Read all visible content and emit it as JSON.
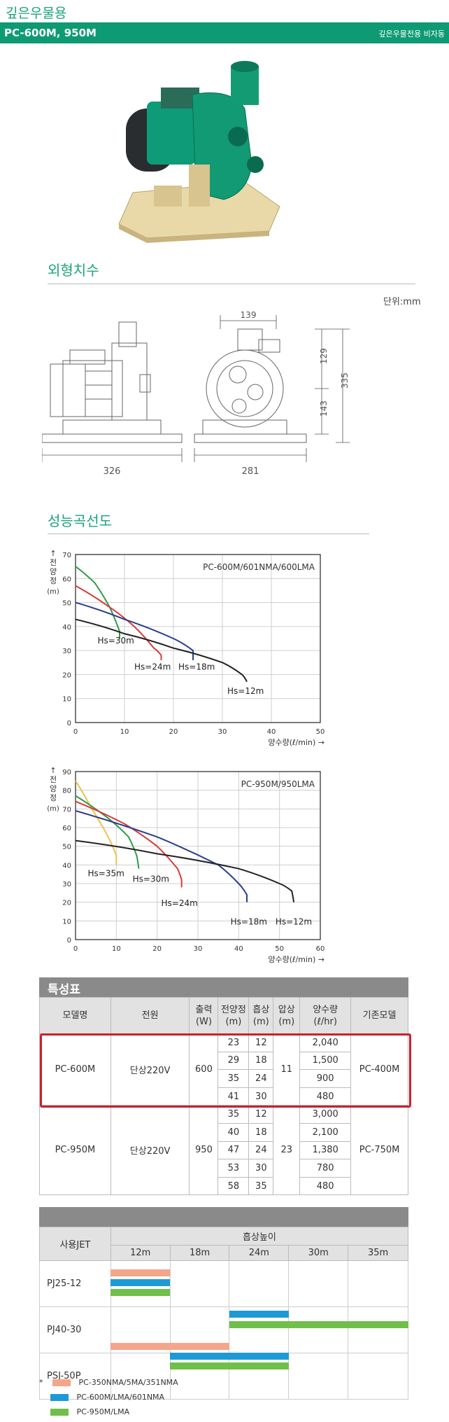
{
  "header": {
    "category": "깊은우물용",
    "model": "PC-600M, 950M",
    "subtitle": "깊은우물전용 비자동"
  },
  "dimension": {
    "title": "외형치수",
    "unit": "단위:mm",
    "labels": [
      "139",
      "129",
      "335",
      "143",
      "326",
      "281"
    ]
  },
  "performance": {
    "title": "성능곡선도"
  },
  "colors": {
    "brand_green": "#1aa37a",
    "highlight_red": "#c8222c",
    "peach": "#f4a58a",
    "blue": "#1d9ad6",
    "green": "#6fbf4a",
    "hs_green": "#2e9d48",
    "hs_red": "#d83a3a",
    "hs_navy": "#2c3f8c",
    "hs_black": "#222222",
    "hs_yellow": "#e8c44a"
  },
  "chart_data": [
    {
      "type": "line",
      "title": "PC-600M/601NMA/600LMA",
      "ylabel": "전양정(m)",
      "xlabel": "양수량(ℓ/min) →",
      "xlim": [
        0,
        50
      ],
      "ylim": [
        0,
        70
      ],
      "xticks": [
        0,
        10,
        20,
        30,
        40,
        50
      ],
      "yticks": [
        0,
        10,
        20,
        30,
        40,
        50,
        60,
        70
      ],
      "grid": true,
      "series": [
        {
          "name": "Hs=30m",
          "color": "#2e9d48",
          "x": [
            0,
            4,
            7,
            9,
            9
          ],
          "y": [
            65,
            58,
            48,
            38,
            35
          ]
        },
        {
          "name": "Hs=24m",
          "color": "#d83a3a",
          "x": [
            0,
            7,
            12,
            16,
            17.5,
            17.5
          ],
          "y": [
            57,
            48,
            40,
            31,
            28,
            26
          ]
        },
        {
          "name": "Hs=18m",
          "color": "#2c3f8c",
          "x": [
            0,
            10,
            20,
            24,
            24
          ],
          "y": [
            50,
            43,
            35,
            30,
            26
          ]
        },
        {
          "name": "Hs=12m",
          "color": "#222222",
          "x": [
            0,
            10,
            20,
            30,
            34,
            35
          ],
          "y": [
            43,
            37,
            31,
            25,
            20,
            17
          ]
        }
      ],
      "annotations": [
        {
          "text": "Hs=30m",
          "x": 4.5,
          "y": 33
        },
        {
          "text": "Hs=24m",
          "x": 12,
          "y": 22
        },
        {
          "text": "Hs=18m",
          "x": 21,
          "y": 22
        },
        {
          "text": "Hs=12m",
          "x": 31,
          "y": 12
        }
      ]
    },
    {
      "type": "line",
      "title": "PC-950M/950LMA",
      "ylabel": "전양정(m)",
      "xlabel": "양수량(ℓ/min) →",
      "xlim": [
        0,
        60
      ],
      "ylim": [
        0,
        90
      ],
      "xticks": [
        0,
        10,
        20,
        30,
        40,
        50,
        60
      ],
      "yticks": [
        0,
        10,
        20,
        30,
        40,
        50,
        60,
        70,
        80,
        90
      ],
      "grid": true,
      "series": [
        {
          "name": "Hs=35m",
          "color": "#e8c44a",
          "x": [
            0,
            4,
            8,
            10,
            10
          ],
          "y": [
            85,
            70,
            55,
            45,
            40
          ]
        },
        {
          "name": "Hs=30m",
          "color": "#2e9d48",
          "x": [
            0,
            8,
            13,
            15,
            15.5
          ],
          "y": [
            77,
            65,
            55,
            45,
            38
          ]
        },
        {
          "name": "Hs=24m",
          "color": "#d83a3a",
          "x": [
            0,
            12,
            20,
            25,
            26,
            26
          ],
          "y": [
            74,
            62,
            50,
            38,
            32,
            28
          ]
        },
        {
          "name": "Hs=18m",
          "color": "#2c3f8c",
          "x": [
            0,
            20,
            35,
            40,
            42,
            42
          ],
          "y": [
            69,
            55,
            40,
            30,
            24,
            20
          ]
        },
        {
          "name": "Hs=12m",
          "color": "#222222",
          "x": [
            0,
            20,
            40,
            50,
            53,
            53.5
          ],
          "y": [
            53,
            46,
            38,
            30,
            26,
            20
          ]
        }
      ],
      "annotations": [
        {
          "text": "Hs=35m",
          "x": 3,
          "y": 34
        },
        {
          "text": "Hs=30m",
          "x": 14,
          "y": 31
        },
        {
          "text": "Hs=24m",
          "x": 21,
          "y": 18
        },
        {
          "text": "Hs=18m",
          "x": 38,
          "y": 8
        },
        {
          "text": "Hs=12m",
          "x": 49,
          "y": 8
        }
      ]
    }
  ],
  "spec": {
    "title": "특성표",
    "headers": [
      "모델명",
      "전원",
      "출력 (W)",
      "전양정 (m)",
      "흡상 (m)",
      "압상 (m)",
      "양수량 (ℓ/hr)",
      "기존모델"
    ],
    "models": [
      {
        "name": "PC-600M",
        "power": "단상220V",
        "output": "600",
        "push": "11",
        "old": "PC-400M",
        "rows": [
          [
            "23",
            "12",
            "2,040"
          ],
          [
            "29",
            "18",
            "1,500"
          ],
          [
            "35",
            "24",
            "900"
          ],
          [
            "41",
            "30",
            "480"
          ]
        ]
      },
      {
        "name": "PC-950M",
        "power": "단상220V",
        "output": "950",
        "push": "23",
        "old": "PC-750M",
        "rows": [
          [
            "35",
            "12",
            "3,000"
          ],
          [
            "40",
            "18",
            "2,100"
          ],
          [
            "47",
            "24",
            "1,380"
          ],
          [
            "53",
            "30",
            "780"
          ],
          [
            "58",
            "35",
            "480"
          ]
        ]
      }
    ]
  },
  "jet": {
    "col_label": "사용JET",
    "group_label": "흡상높이",
    "heights": [
      "12m",
      "18m",
      "24m",
      "30m",
      "35m"
    ],
    "rows": [
      "PJ25-12",
      "PJ40-30",
      "PSJ-50P"
    ]
  },
  "legend": {
    "marker": "*",
    "items": [
      "PC-350NMA/5MA/351NMA",
      "PC-600M/LMA/601NMA",
      "PC-950M/LMA"
    ]
  }
}
